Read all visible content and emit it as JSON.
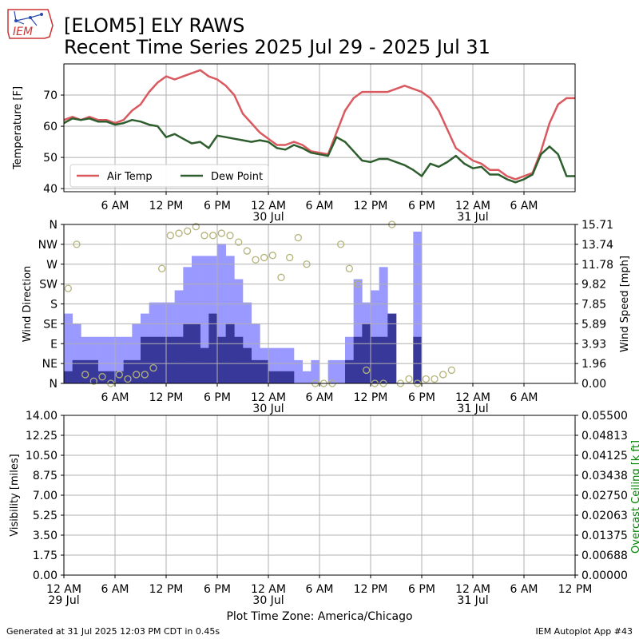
{
  "header": {
    "logo_text": "IEM",
    "title_line1": "[ELOM5] ELY RAWS",
    "title_line2": "Recent Time Series 2025 Jul 29 - 2025 Jul 31"
  },
  "footer": {
    "generated": "Generated at 31 Jul 2025 12:03 PM CDT in 0.45s",
    "app": "IEM Autoplot App #43",
    "timezone": "Plot Time Zone: America/Chicago"
  },
  "colors": {
    "air_temp": "#d9595f",
    "dew_point": "#2e5e2e",
    "gust_bar": "#9999ff",
    "speed_bar": "#38389a",
    "direction_marker": "#b3b37a",
    "ceiling_axis": "#008000",
    "grid": "#b0b0b0"
  },
  "chart_data": [
    {
      "type": "line",
      "title": "",
      "ylabel": "Temperature [F]",
      "ylim": [
        39,
        80
      ],
      "yticks": [
        40,
        50,
        60,
        70
      ],
      "xlim_hours": [
        0,
        60
      ],
      "xticks": [
        {
          "hour": 6,
          "label": "6 AM",
          "sub": ""
        },
        {
          "hour": 12,
          "label": "12 PM",
          "sub": ""
        },
        {
          "hour": 18,
          "label": "6 PM",
          "sub": ""
        },
        {
          "hour": 24,
          "label": "12 AM",
          "sub": "30 Jul"
        },
        {
          "hour": 30,
          "label": "6 AM",
          "sub": ""
        },
        {
          "hour": 36,
          "label": "12 PM",
          "sub": ""
        },
        {
          "hour": 42,
          "label": "6 PM",
          "sub": ""
        },
        {
          "hour": 48,
          "label": "12 AM",
          "sub": "31 Jul"
        },
        {
          "hour": 54,
          "label": "6 AM",
          "sub": ""
        }
      ],
      "grid": true,
      "legend": "lower-left",
      "series": [
        {
          "name": "Air Temp",
          "x": [
            0,
            1,
            2,
            3,
            4,
            5,
            6,
            7,
            8,
            9,
            10,
            11,
            12,
            13,
            14,
            15,
            16,
            17,
            18,
            19,
            20,
            21,
            22,
            23,
            24,
            25,
            26,
            27,
            28,
            29,
            30,
            31,
            32,
            33,
            34,
            35,
            36,
            37,
            38,
            39,
            40,
            41,
            42,
            43,
            44,
            45,
            46,
            47,
            48,
            49,
            50,
            51,
            52,
            53,
            54,
            55,
            56,
            57,
            58,
            59,
            60
          ],
          "values": [
            62,
            63,
            62,
            63,
            62,
            62,
            61,
            62,
            65,
            67,
            71,
            74,
            76,
            75,
            76,
            77,
            78,
            76,
            75,
            73,
            70,
            64,
            61,
            58,
            56,
            54,
            54,
            55,
            54,
            52,
            51.5,
            51,
            58,
            65,
            69,
            71,
            71,
            71,
            71,
            72,
            73,
            72,
            71,
            69,
            65,
            59,
            53,
            51,
            49,
            48,
            46,
            46,
            44,
            43,
            44,
            45,
            52,
            61,
            67,
            69,
            69
          ]
        },
        {
          "name": "Dew Point",
          "x": [
            0,
            1,
            2,
            3,
            4,
            5,
            6,
            7,
            8,
            9,
            10,
            11,
            12,
            13,
            14,
            15,
            16,
            17,
            18,
            19,
            20,
            21,
            22,
            23,
            24,
            25,
            26,
            27,
            28,
            29,
            30,
            31,
            32,
            33,
            34,
            35,
            36,
            37,
            38,
            39,
            40,
            41,
            42,
            43,
            44,
            45,
            46,
            47,
            48,
            49,
            50,
            51,
            52,
            53,
            54,
            55,
            56,
            57,
            58,
            59,
            60
          ],
          "values": [
            61,
            62.5,
            62,
            62.5,
            61.5,
            61.5,
            60.5,
            61,
            62,
            61.5,
            60.5,
            60,
            56.5,
            57.5,
            56,
            54.5,
            55,
            53,
            57,
            56.5,
            56,
            55.5,
            55,
            55.5,
            55,
            53,
            52.5,
            54,
            53,
            51.5,
            51,
            50.5,
            56.5,
            55,
            52,
            49,
            48.5,
            49.5,
            49.5,
            48.5,
            47.5,
            46,
            44,
            48,
            47,
            48.5,
            50.5,
            48,
            46.5,
            47,
            44.5,
            44.5,
            43,
            42,
            43,
            44.5,
            51,
            53.5,
            51,
            44,
            44
          ]
        }
      ]
    },
    {
      "type": "bar",
      "title": "",
      "ylabel_left": "Wind Direction",
      "ylabel_right": "Wind Speed [mph]",
      "direction_ticks": [
        "N",
        "NE",
        "E",
        "SE",
        "S",
        "SW",
        "W",
        "NW",
        "N"
      ],
      "speed_ticks": [
        "0.00",
        "1.96",
        "3.93",
        "5.89",
        "7.85",
        "9.82",
        "11.78",
        "13.74",
        "15.71"
      ],
      "speed_lim": [
        0,
        15.71
      ],
      "xlim_hours": [
        0,
        60
      ],
      "grid": true,
      "series": [
        {
          "name": "Gust",
          "x": [
            0,
            1,
            2,
            3,
            4,
            5,
            6,
            7,
            8,
            9,
            10,
            11,
            12,
            13,
            14,
            15,
            16,
            17,
            18,
            19,
            20,
            21,
            22,
            23,
            24,
            25,
            26,
            27,
            28,
            29,
            30,
            31,
            32,
            33,
            34,
            35,
            36,
            37,
            38,
            39,
            40,
            41,
            42,
            43,
            44,
            45,
            46,
            47,
            48,
            49,
            50,
            51,
            52,
            53,
            54,
            55,
            56,
            57,
            58,
            59,
            60
          ],
          "values": [
            6.9,
            5.9,
            4.6,
            4.6,
            4.6,
            4.6,
            4.6,
            4.6,
            5.9,
            6.9,
            8.0,
            8.0,
            8.0,
            9.2,
            11.5,
            12.6,
            12.6,
            12.6,
            13.8,
            12.6,
            10.3,
            8.0,
            5.9,
            3.5,
            3.5,
            3.5,
            3.5,
            2.3,
            1.2,
            2.3,
            0,
            2.3,
            2.3,
            4.6,
            10.3,
            8.0,
            9.2,
            11.5,
            0,
            0,
            0,
            15.0,
            0,
            0,
            0,
            0,
            0,
            0,
            0,
            0,
            0,
            0,
            0,
            0,
            0,
            0,
            0,
            0,
            0,
            0,
            0
          ]
        },
        {
          "name": "Speed",
          "x": [
            0,
            1,
            2,
            3,
            4,
            5,
            6,
            7,
            8,
            9,
            10,
            11,
            12,
            13,
            14,
            15,
            16,
            17,
            18,
            19,
            20,
            21,
            22,
            23,
            24,
            25,
            26,
            27,
            28,
            29,
            30,
            31,
            32,
            33,
            34,
            35,
            36,
            37,
            38,
            39,
            40,
            41,
            42,
            43,
            44,
            45,
            46,
            47,
            48,
            49,
            50,
            51,
            52,
            53,
            54,
            55,
            56,
            57,
            58,
            59,
            60
          ],
          "values": [
            1.2,
            2.3,
            2.3,
            2.3,
            1.2,
            1.2,
            1.2,
            2.3,
            2.3,
            4.6,
            4.6,
            4.6,
            4.6,
            4.6,
            5.9,
            5.9,
            3.5,
            6.9,
            4.6,
            5.9,
            4.6,
            3.5,
            2.3,
            2.3,
            1.2,
            1.2,
            1.2,
            0,
            0,
            0,
            0,
            0,
            0,
            2.3,
            4.6,
            5.9,
            4.6,
            4.6,
            6.9,
            0,
            0,
            4.6,
            0,
            0,
            0,
            0,
            0,
            0,
            0,
            0,
            0,
            0,
            0,
            0,
            0,
            0,
            0,
            0,
            0,
            0,
            0
          ]
        },
        {
          "name": "Direction",
          "type": "scatter",
          "x": [
            0,
            1,
            2,
            3,
            4,
            5,
            6,
            7,
            8,
            9,
            10,
            11,
            12,
            13,
            14,
            15,
            16,
            17,
            18,
            19,
            20,
            21,
            22,
            23,
            24,
            25,
            26,
            27,
            28,
            29,
            30,
            31,
            32,
            33,
            34,
            35,
            36,
            37,
            38,
            39,
            40,
            41,
            42,
            43,
            44,
            45,
            46,
            47,
            48,
            49,
            50,
            51,
            52,
            53,
            54,
            55,
            56,
            57,
            58,
            59,
            60
          ],
          "values": [
            215,
            315,
            20,
            5,
            15,
            0,
            20,
            10,
            20,
            20,
            35,
            260,
            335,
            340,
            345,
            355,
            335,
            335,
            340,
            335,
            320,
            300,
            280,
            285,
            290,
            240,
            285,
            330,
            270,
            0,
            0,
            0,
            315,
            260,
            225,
            30,
            0,
            0,
            360,
            0,
            10,
            0,
            10,
            10,
            20,
            30,
            0,
            0,
            0,
            0,
            0,
            0,
            0,
            0,
            0,
            0,
            0,
            0,
            0,
            0,
            0
          ]
        }
      ]
    },
    {
      "type": "line",
      "title": "",
      "ylabel_left": "Visibility [miles]",
      "ylabel_right": "Overcast Ceiling [k ft]",
      "left_ticks": [
        "0.00",
        "1.75",
        "3.50",
        "5.25",
        "7.00",
        "8.75",
        "10.50",
        "12.25",
        "14.00"
      ],
      "right_ticks": [
        "0.00000",
        "0.00688",
        "0.01375",
        "0.02063",
        "0.02750",
        "0.03438",
        "0.04125",
        "0.04813",
        "0.05500"
      ],
      "left_lim": [
        0,
        14
      ],
      "right_lim": [
        0,
        0.055
      ],
      "xlim_hours": [
        0,
        60
      ],
      "xticks": [
        {
          "hour": 0,
          "label": "12 AM",
          "sub": "29 Jul"
        },
        {
          "hour": 6,
          "label": "6 AM",
          "sub": ""
        },
        {
          "hour": 12,
          "label": "12 PM",
          "sub": ""
        },
        {
          "hour": 18,
          "label": "6 PM",
          "sub": ""
        },
        {
          "hour": 24,
          "label": "12 AM",
          "sub": "30 Jul"
        },
        {
          "hour": 30,
          "label": "6 AM",
          "sub": ""
        },
        {
          "hour": 36,
          "label": "12 PM",
          "sub": ""
        },
        {
          "hour": 42,
          "label": "6 PM",
          "sub": ""
        },
        {
          "hour": 48,
          "label": "12 AM",
          "sub": "31 Jul"
        },
        {
          "hour": 54,
          "label": "6 AM",
          "sub": ""
        },
        {
          "hour": 60,
          "label": "12 PM",
          "sub": ""
        }
      ],
      "grid": true,
      "series": []
    }
  ]
}
